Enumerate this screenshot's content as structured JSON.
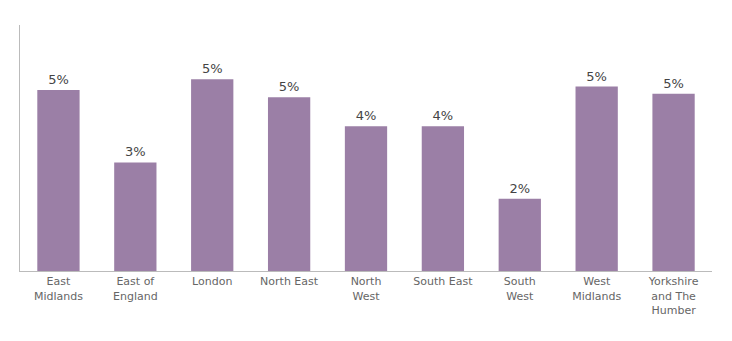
{
  "chart_data": {
    "type": "bar",
    "categories": [
      "East\nMidlands",
      "East of\nEngland",
      "London",
      "North East",
      "North\nWest",
      "South East",
      "South\nWest",
      "West\nMidlands",
      "Yorkshire\nand The\nHumber"
    ],
    "values": [
      5,
      3,
      5.3,
      4.8,
      4,
      4,
      2,
      5.1,
      4.9
    ],
    "value_labels": [
      "5%",
      "3%",
      "5%",
      "5%",
      "4%",
      "4%",
      "2%",
      "5%",
      "5%"
    ],
    "data_labels": true,
    "color": "#9b7fa6",
    "ylim": [
      0,
      6.8
    ],
    "grid": false,
    "tick_labels": "x"
  }
}
